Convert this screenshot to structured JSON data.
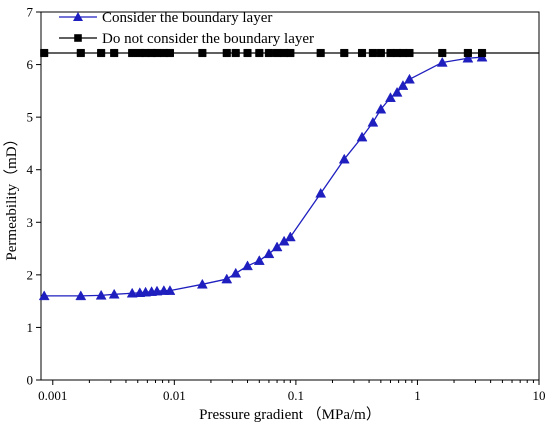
{
  "chart_data": {
    "type": "line",
    "xlabel": "Pressure gradient （MPa/m）",
    "ylabel": "Permeability（mD）",
    "x_scale": "log",
    "xlim": [
      0.0008,
      10
    ],
    "ylim": [
      0,
      7
    ],
    "x_ticks": [
      {
        "value": 0.001,
        "label": "0.001"
      },
      {
        "value": 0.01,
        "label": "0.01"
      },
      {
        "value": 0.1,
        "label": "0.1"
      },
      {
        "value": 1,
        "label": "1"
      },
      {
        "value": 10,
        "label": "10"
      }
    ],
    "y_ticks": [
      {
        "value": 0,
        "label": "0"
      },
      {
        "value": 1,
        "label": "1"
      },
      {
        "value": 2,
        "label": "2"
      },
      {
        "value": 3,
        "label": "3"
      },
      {
        "value": 4,
        "label": "4"
      },
      {
        "value": 5,
        "label": "5"
      },
      {
        "value": 6,
        "label": "6"
      },
      {
        "value": 7,
        "label": "7"
      }
    ],
    "grid": false,
    "legend_position": "top-left",
    "series": [
      {
        "name": "Consider the boundary layer",
        "color": "#1f1fbf",
        "marker": "triangle",
        "x": [
          0.00085,
          0.0017,
          0.0025,
          0.0032,
          0.0045,
          0.0052,
          0.0058,
          0.0065,
          0.0072,
          0.0082,
          0.0092,
          0.017,
          0.027,
          0.032,
          0.04,
          0.05,
          0.06,
          0.07,
          0.08,
          0.09,
          0.16,
          0.25,
          0.35,
          0.43,
          0.5,
          0.6,
          0.68,
          0.76,
          0.86,
          1.6,
          2.6,
          3.4
        ],
        "y": [
          1.6,
          1.6,
          1.61,
          1.63,
          1.65,
          1.66,
          1.67,
          1.68,
          1.69,
          1.7,
          1.7,
          1.82,
          1.92,
          2.03,
          2.17,
          2.27,
          2.4,
          2.53,
          2.64,
          2.72,
          3.55,
          4.2,
          4.62,
          4.9,
          5.15,
          5.37,
          5.47,
          5.6,
          5.72,
          6.04,
          6.12,
          6.14
        ]
      },
      {
        "name": "Do not consider the boundary layer",
        "color": "#000000",
        "marker": "square",
        "x": [
          0.00085,
          0.0017,
          0.0025,
          0.0032,
          0.0045,
          0.0052,
          0.0058,
          0.0065,
          0.0072,
          0.0082,
          0.0092,
          0.017,
          0.027,
          0.032,
          0.04,
          0.05,
          0.06,
          0.07,
          0.08,
          0.09,
          0.16,
          0.25,
          0.35,
          0.43,
          0.5,
          0.6,
          0.68,
          0.76,
          0.86,
          1.6,
          2.6,
          3.4
        ],
        "y": [
          6.22,
          6.22,
          6.22,
          6.22,
          6.22,
          6.22,
          6.22,
          6.22,
          6.22,
          6.22,
          6.22,
          6.22,
          6.22,
          6.22,
          6.22,
          6.22,
          6.22,
          6.22,
          6.22,
          6.22,
          6.22,
          6.22,
          6.22,
          6.22,
          6.22,
          6.22,
          6.22,
          6.22,
          6.22,
          6.22,
          6.22,
          6.22
        ]
      }
    ]
  }
}
